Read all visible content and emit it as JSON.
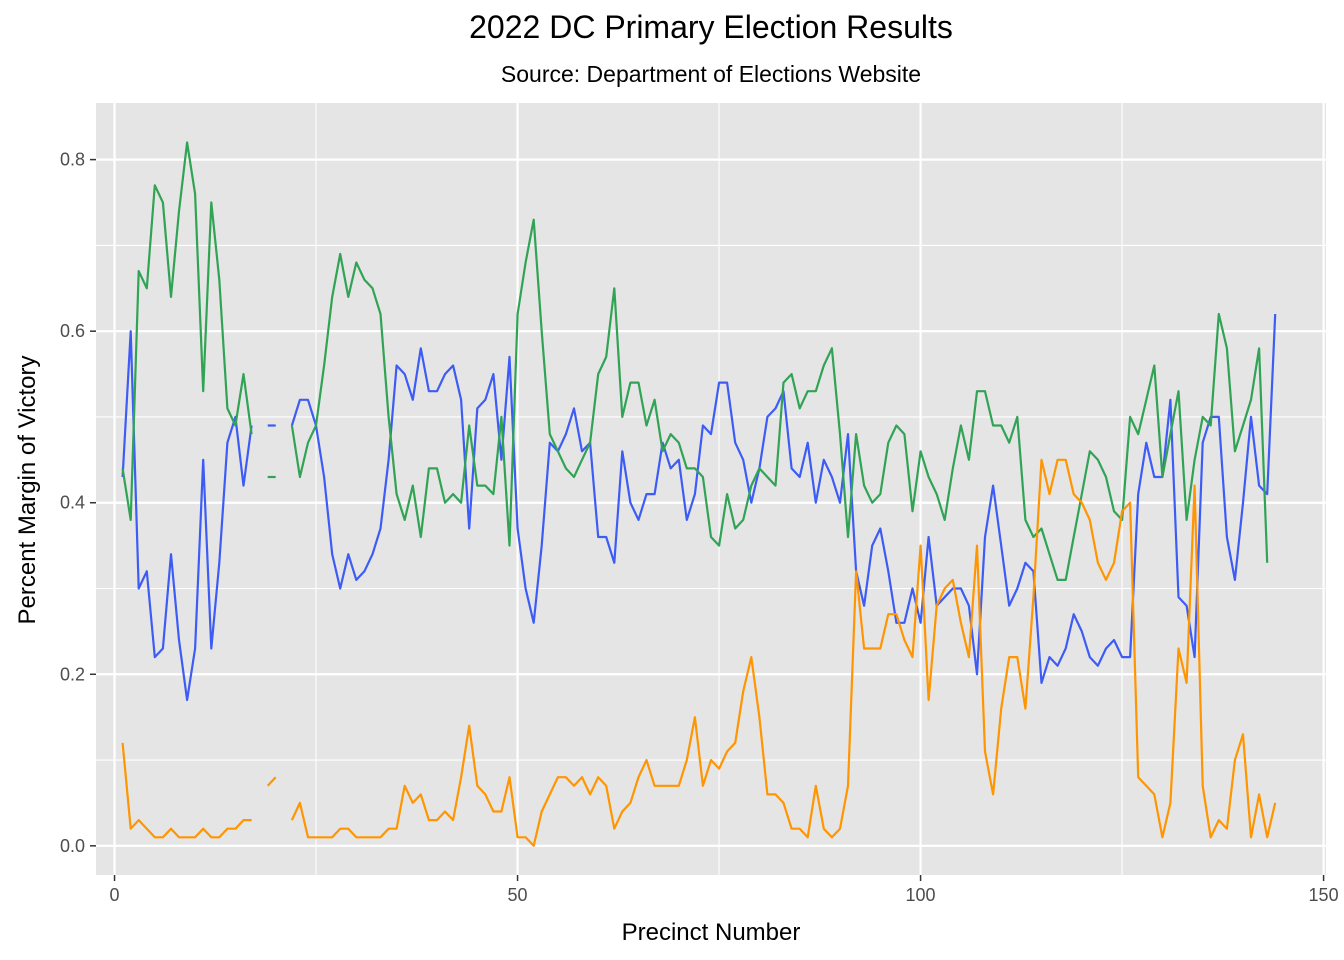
{
  "chart_data": {
    "type": "line",
    "title": "2022 DC Primary Election Results",
    "subtitle": "Source: Department of Elections Website",
    "xlabel": "Precinct Number",
    "ylabel": "Percent Margin of Victory",
    "xlim": [
      -2.3,
      150.3
    ],
    "ylim": [
      -0.034,
      0.866
    ],
    "xticks": [
      0,
      50,
      100,
      150
    ],
    "xtick_labels": [
      "0",
      "50",
      "100",
      "150"
    ],
    "yticks": [
      0.0,
      0.2,
      0.4,
      0.6,
      0.8
    ],
    "ytick_labels": [
      "0.0",
      "0.2",
      "0.4",
      "0.6",
      "0.8"
    ],
    "grid": true,
    "legend": "none",
    "colors": {
      "panel": "#e5e5e5",
      "grid": "#ffffff"
    },
    "x": [
      1,
      2,
      3,
      4,
      5,
      6,
      7,
      8,
      9,
      10,
      11,
      12,
      13,
      14,
      15,
      16,
      17,
      18,
      19,
      20,
      21,
      22,
      23,
      24,
      25,
      26,
      27,
      28,
      29,
      30,
      31,
      32,
      33,
      34,
      35,
      36,
      37,
      38,
      39,
      40,
      41,
      42,
      43,
      44,
      45,
      46,
      47,
      48,
      49,
      50,
      51,
      52,
      53,
      54,
      55,
      56,
      57,
      58,
      59,
      60,
      61,
      62,
      63,
      64,
      65,
      66,
      67,
      68,
      69,
      70,
      71,
      72,
      73,
      74,
      75,
      76,
      77,
      78,
      79,
      80,
      81,
      82,
      83,
      84,
      85,
      86,
      87,
      88,
      89,
      90,
      91,
      92,
      93,
      94,
      95,
      96,
      97,
      98,
      99,
      100,
      101,
      102,
      103,
      104,
      105,
      106,
      107,
      108,
      109,
      110,
      111,
      112,
      113,
      114,
      115,
      116,
      117,
      118,
      119,
      120,
      121,
      122,
      123,
      124,
      125,
      126,
      127,
      128,
      129,
      130,
      131,
      132,
      133,
      134,
      135,
      136,
      137,
      138,
      139,
      140,
      141,
      142,
      143,
      144
    ],
    "series": [
      {
        "color": "#3d5cf5",
        "values": [
          0.43,
          0.6,
          0.3,
          0.32,
          0.22,
          0.23,
          0.34,
          0.24,
          0.17,
          0.23,
          0.45,
          0.23,
          0.33,
          0.47,
          0.5,
          0.42,
          0.49,
          null,
          0.49,
          0.49,
          null,
          0.49,
          0.52,
          0.52,
          0.49,
          0.43,
          0.34,
          0.3,
          0.34,
          0.31,
          0.32,
          0.34,
          0.37,
          0.45,
          0.56,
          0.55,
          0.52,
          0.58,
          0.53,
          0.53,
          0.55,
          0.56,
          0.52,
          0.37,
          0.51,
          0.52,
          0.55,
          0.45,
          0.57,
          0.37,
          0.3,
          0.26,
          0.35,
          0.47,
          0.46,
          0.48,
          0.51,
          0.46,
          0.47,
          0.36,
          0.36,
          0.33,
          0.46,
          0.4,
          0.38,
          0.41,
          0.41,
          0.47,
          0.44,
          0.45,
          0.38,
          0.41,
          0.49,
          0.48,
          0.54,
          0.54,
          0.47,
          0.45,
          0.4,
          0.44,
          0.5,
          0.51,
          0.53,
          0.44,
          0.43,
          0.47,
          0.4,
          0.45,
          0.43,
          0.4,
          0.48,
          0.32,
          0.28,
          0.35,
          0.37,
          0.32,
          0.26,
          0.26,
          0.3,
          0.26,
          0.36,
          0.28,
          0.29,
          0.3,
          0.3,
          0.28,
          0.2,
          0.36,
          0.42,
          0.35,
          0.28,
          0.3,
          0.33,
          0.32,
          0.19,
          0.22,
          0.21,
          0.23,
          0.27,
          0.25,
          0.22,
          0.21,
          0.23,
          0.24,
          0.22,
          0.22,
          0.41,
          0.47,
          0.43,
          0.43,
          0.52,
          0.29,
          0.28,
          0.22,
          0.47,
          0.5,
          0.5,
          0.36,
          0.31,
          0.4,
          0.5,
          0.42,
          0.41,
          0.62
        ]
      },
      {
        "color": "#31a354",
        "values": [
          0.44,
          0.38,
          0.67,
          0.65,
          0.77,
          0.75,
          0.64,
          0.74,
          0.82,
          0.76,
          0.53,
          0.75,
          0.66,
          0.51,
          0.49,
          0.55,
          0.48,
          null,
          0.43,
          0.43,
          null,
          0.49,
          0.43,
          0.47,
          0.49,
          0.56,
          0.64,
          0.69,
          0.64,
          0.68,
          0.66,
          0.65,
          0.62,
          0.5,
          0.41,
          0.38,
          0.42,
          0.36,
          0.44,
          0.44,
          0.4,
          0.41,
          0.4,
          0.49,
          0.42,
          0.42,
          0.41,
          0.5,
          0.35,
          0.62,
          0.68,
          0.73,
          0.6,
          0.48,
          0.46,
          0.44,
          0.43,
          0.45,
          0.47,
          0.55,
          0.57,
          0.65,
          0.5,
          0.54,
          0.54,
          0.49,
          0.52,
          0.46,
          0.48,
          0.47,
          0.44,
          0.44,
          0.43,
          0.36,
          0.35,
          0.41,
          0.37,
          0.38,
          0.42,
          0.44,
          0.43,
          0.42,
          0.54,
          0.55,
          0.51,
          0.53,
          0.53,
          0.56,
          0.58,
          0.48,
          0.36,
          0.48,
          0.42,
          0.4,
          0.41,
          0.47,
          0.49,
          0.48,
          0.39,
          0.46,
          0.43,
          0.41,
          0.38,
          0.44,
          0.49,
          0.45,
          0.53,
          0.53,
          0.49,
          0.49,
          0.47,
          0.5,
          0.38,
          0.36,
          0.37,
          0.34,
          0.31,
          0.31,
          0.36,
          0.41,
          0.46,
          0.45,
          0.43,
          0.39,
          0.38,
          0.5,
          0.48,
          0.52,
          0.56,
          0.43,
          0.48,
          0.53,
          0.38,
          0.45,
          0.5,
          0.49,
          0.62,
          0.58,
          0.46,
          0.49,
          0.52,
          0.58,
          0.33,
          null
        ]
      },
      {
        "color": "#ff9500",
        "values": [
          0.12,
          0.02,
          0.03,
          0.02,
          0.01,
          0.01,
          0.02,
          0.01,
          0.01,
          0.01,
          0.02,
          0.01,
          0.01,
          0.02,
          0.02,
          0.03,
          0.03,
          null,
          0.07,
          0.08,
          null,
          0.03,
          0.05,
          0.01,
          0.01,
          0.01,
          0.01,
          0.02,
          0.02,
          0.01,
          0.01,
          0.01,
          0.01,
          0.02,
          0.02,
          0.07,
          0.05,
          0.06,
          0.03,
          0.03,
          0.04,
          0.03,
          0.08,
          0.14,
          0.07,
          0.06,
          0.04,
          0.04,
          0.08,
          0.01,
          0.01,
          0.0,
          0.04,
          0.06,
          0.08,
          0.08,
          0.07,
          0.08,
          0.06,
          0.08,
          0.07,
          0.02,
          0.04,
          0.05,
          0.08,
          0.1,
          0.07,
          0.07,
          0.07,
          0.07,
          0.1,
          0.15,
          0.07,
          0.1,
          0.09,
          0.11,
          0.12,
          0.18,
          0.22,
          0.15,
          0.06,
          0.06,
          0.05,
          0.02,
          0.02,
          0.01,
          0.07,
          0.02,
          0.01,
          0.02,
          0.07,
          0.32,
          0.23,
          0.23,
          0.23,
          0.27,
          0.27,
          0.24,
          0.22,
          0.35,
          0.17,
          0.28,
          0.3,
          0.31,
          0.26,
          0.22,
          0.35,
          0.11,
          0.06,
          0.16,
          0.22,
          0.22,
          0.16,
          0.29,
          0.45,
          0.41,
          0.45,
          0.45,
          0.41,
          0.4,
          0.38,
          0.33,
          0.31,
          0.33,
          0.39,
          0.4,
          0.08,
          0.07,
          0.06,
          0.01,
          0.05,
          0.23,
          0.19,
          0.42,
          0.07,
          0.01,
          0.03,
          0.02,
          0.1,
          0.13,
          0.01,
          0.06,
          0.01,
          0.05
        ]
      }
    ]
  }
}
